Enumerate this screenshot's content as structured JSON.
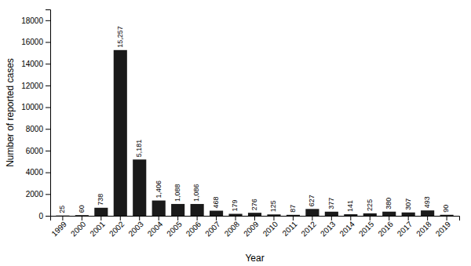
{
  "chart_data": {
    "type": "bar",
    "categories": [
      "1999",
      "2000",
      "2001",
      "2002",
      "2003",
      "2004",
      "2005",
      "2006",
      "2007",
      "2008",
      "2009",
      "2010",
      "2011",
      "2012",
      "2013",
      "2014",
      "2015",
      "2016",
      "2017",
      "2018",
      "2019"
    ],
    "values": [
      25,
      60,
      738,
      15257,
      5181,
      1406,
      1088,
      1086,
      468,
      179,
      276,
      125,
      87,
      627,
      377,
      141,
      225,
      380,
      307,
      493,
      90
    ],
    "value_labels": [
      "25",
      "60",
      "738",
      "15,257",
      "5,181",
      "1,406",
      "1,088",
      "1,086",
      "468",
      "179",
      "276",
      "125",
      "87",
      "627",
      "377",
      "141",
      "225",
      "380",
      "307",
      "493",
      "90"
    ],
    "data_labels": true,
    "color": "#1a1a1a",
    "xlabel": "Year",
    "ylabel": "Number of reported cases",
    "ylim": [
      0,
      19000
    ],
    "yticks": [
      0,
      2000,
      4000,
      6000,
      8000,
      10000,
      12000,
      14000,
      16000,
      18000
    ],
    "grid": false
  }
}
